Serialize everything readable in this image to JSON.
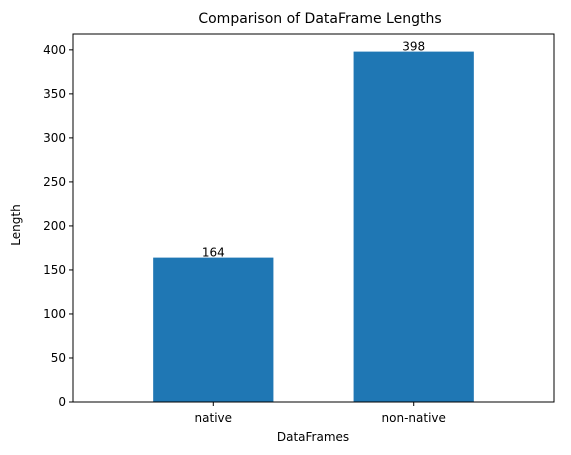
{
  "chart_data": {
    "type": "bar",
    "title": "Comparison of DataFrame Lengths",
    "xlabel": "DataFrames",
    "ylabel": "Length",
    "categories": [
      "native",
      "non-native"
    ],
    "values": [
      164,
      398
    ],
    "data_labels": [
      "164",
      "398"
    ],
    "ylim": [
      0,
      418
    ],
    "yticks": [
      0,
      50,
      100,
      150,
      200,
      250,
      300,
      350,
      400
    ],
    "bar_color": "#1f77b4",
    "grid": false,
    "legend": "none"
  }
}
